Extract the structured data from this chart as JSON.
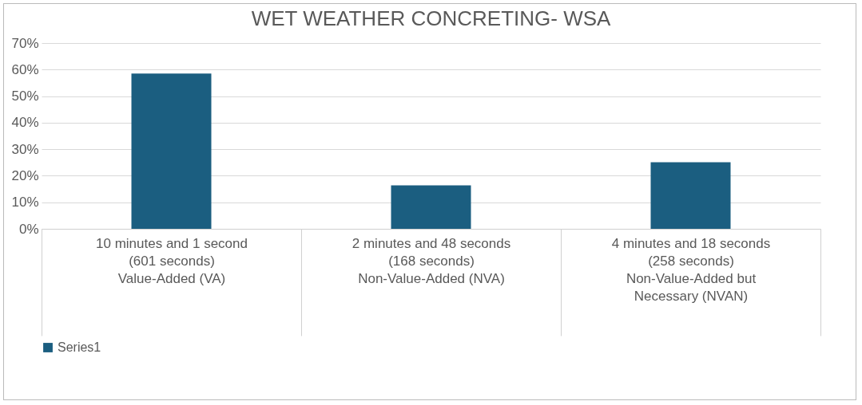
{
  "chart_data": {
    "type": "bar",
    "title": "WET WEATHER CONCRETING- WSA",
    "categories": [
      "10 minutes and 1 second\n(601 seconds)\n\nValue-Added (VA)",
      "2 minutes and 48 seconds\n(168 seconds)\n\nNon-Value-Added (NVA)",
      "4 minutes and 18 seconds\n(258 seconds)\n\nNon-Value-Added but\nNecessary (NVAN)"
    ],
    "series": [
      {
        "name": "Series1",
        "color": "#1b5e80",
        "values": [
          58.5,
          16.4,
          25.1
        ]
      }
    ],
    "ylim": [
      0,
      70
    ],
    "yticks": [
      {
        "value": 0,
        "label": "0%"
      },
      {
        "value": 10,
        "label": "10%"
      },
      {
        "value": 20,
        "label": "20%"
      },
      {
        "value": 30,
        "label": "30%"
      },
      {
        "value": 40,
        "label": "40%"
      },
      {
        "value": 50,
        "label": "50%"
      },
      {
        "value": 60,
        "label": "60%"
      },
      {
        "value": 70,
        "label": "70%"
      }
    ],
    "grid": "y",
    "legend": "bottom"
  }
}
